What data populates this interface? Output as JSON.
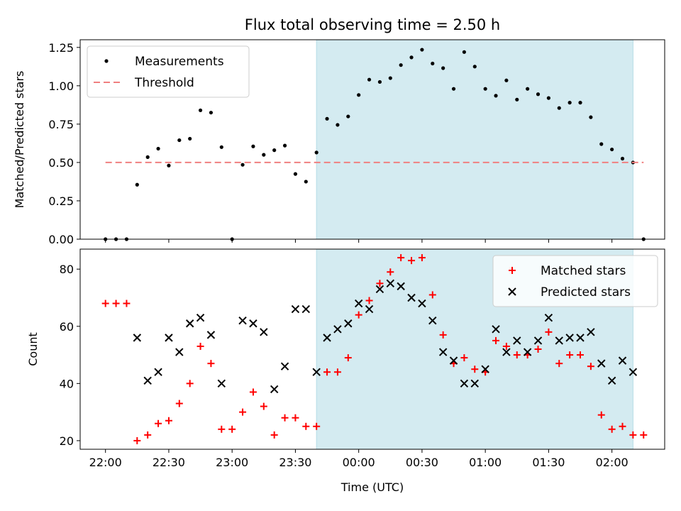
{
  "chart_data": {
    "title": "Flux total observing time = 2.50 h",
    "xlabel": "Time (UTC)",
    "x_tick_labels": [
      "22:00",
      "22:30",
      "23:00",
      "23:30",
      "00:00",
      "00:30",
      "01:00",
      "01:30",
      "02:00"
    ],
    "highlight_span": {
      "start_minutes": 100,
      "end_minutes": 250,
      "color": "#d4ebf1"
    },
    "panels": [
      {
        "type": "scatter",
        "ylabel": "Matched/Predicted stars",
        "ylim": [
          0,
          1.3
        ],
        "y_tick_labels": [
          "0.00",
          "0.25",
          "0.50",
          "0.75",
          "1.00",
          "1.25"
        ],
        "legend_position": "upper left",
        "series": [
          {
            "name": "Measurements",
            "marker": "dot",
            "color": "#000000",
            "x": [
              0,
              5,
              10,
              15,
              20,
              25,
              30,
              35,
              40,
              45,
              50,
              55,
              60,
              65,
              70,
              75,
              80,
              85,
              90,
              95,
              100,
              105,
              110,
              115,
              120,
              125,
              130,
              135,
              140,
              145,
              150,
              155,
              160,
              165,
              170,
              175,
              180,
              185,
              190,
              195,
              200,
              205,
              210,
              215,
              220,
              225,
              230,
              235,
              240,
              245,
              250,
              255
            ],
            "y": [
              0,
              0,
              0,
              0.355,
              0.535,
              0.59,
              0.48,
              0.645,
              0.655,
              0.84,
              0.825,
              0.6,
              0,
              0.485,
              0.605,
              0.55,
              0.58,
              0.61,
              0.425,
              0.375,
              0.565,
              0.785,
              0.745,
              0.8,
              0.94,
              1.04,
              1.025,
              1.05,
              1.135,
              1.185,
              1.235,
              1.145,
              1.115,
              0.98,
              1.22,
              1.125,
              0.98,
              0.935,
              1.035,
              0.91,
              0.98,
              0.945,
              0.92,
              0.855,
              0.89,
              0.89,
              0.795,
              0.62,
              0.585,
              0.525,
              0.5,
              0
            ]
          },
          {
            "name": "Threshold",
            "marker": "dashed-line",
            "color": "#f08080",
            "x": [
              0,
              255
            ],
            "y": [
              0.5,
              0.5
            ]
          }
        ]
      },
      {
        "type": "scatter",
        "ylabel": "Count",
        "ylim": [
          17,
          87
        ],
        "y_tick_labels": [
          "20",
          "40",
          "60",
          "80"
        ],
        "legend_position": "upper right",
        "series": [
          {
            "name": "Matched stars",
            "marker": "plus",
            "color": "#ff0000",
            "x": [
              0,
              5,
              10,
              15,
              20,
              25,
              30,
              35,
              40,
              45,
              50,
              55,
              60,
              65,
              70,
              75,
              80,
              85,
              90,
              95,
              100,
              105,
              110,
              115,
              120,
              125,
              130,
              135,
              140,
              145,
              150,
              155,
              160,
              165,
              170,
              175,
              180,
              185,
              190,
              195,
              200,
              205,
              210,
              215,
              220,
              225,
              230,
              235,
              240,
              245,
              250,
              255
            ],
            "y": [
              68,
              68,
              68,
              20,
              22,
              26,
              27,
              33,
              40,
              53,
              47,
              24,
              24,
              30,
              37,
              32,
              22,
              28,
              28,
              25,
              25,
              44,
              44,
              49,
              64,
              69,
              75,
              79,
              84,
              83,
              84,
              71,
              57,
              47,
              49,
              45,
              44,
              55,
              53,
              50,
              50,
              52,
              58,
              47,
              50,
              50,
              46,
              29,
              24,
              25,
              22,
              22
            ]
          },
          {
            "name": "Predicted stars",
            "marker": "cross",
            "color": "#000000",
            "x": [
              15,
              20,
              25,
              30,
              35,
              40,
              45,
              50,
              55,
              65,
              70,
              75,
              80,
              85,
              90,
              95,
              100,
              105,
              110,
              115,
              120,
              125,
              130,
              135,
              140,
              145,
              150,
              155,
              160,
              165,
              170,
              175,
              180,
              185,
              190,
              195,
              200,
              205,
              210,
              215,
              220,
              225,
              230,
              235,
              240,
              245,
              250
            ],
            "y": [
              56,
              41,
              44,
              56,
              51,
              61,
              63,
              57,
              40,
              62,
              61,
              58,
              38,
              46,
              66,
              66,
              44,
              56,
              59,
              61,
              68,
              66,
              73,
              75,
              74,
              70,
              68,
              62,
              51,
              48,
              40,
              40,
              45,
              59,
              51,
              55,
              51,
              55,
              63,
              55,
              56,
              56,
              58,
              47,
              41,
              48,
              44
            ]
          }
        ]
      }
    ]
  }
}
